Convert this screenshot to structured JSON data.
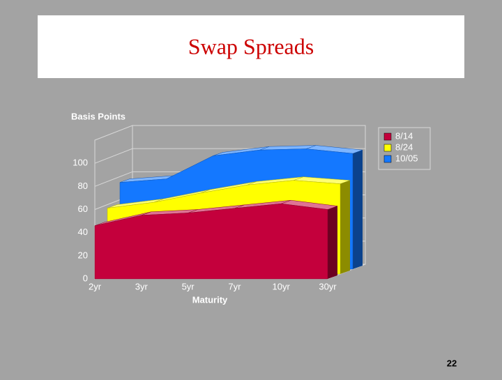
{
  "slide_title": "Swap Spreads",
  "page_number": "22",
  "chart_data": {
    "type": "area3d",
    "y_label": "Basis Points",
    "x_label": "Maturity",
    "categories": [
      "2yr",
      "3yr",
      "5yr",
      "7yr",
      "10yr",
      "30yr"
    ],
    "series": [
      {
        "name": "8/14",
        "color": "#c4003c",
        "values": [
          46,
          55,
          57,
          61,
          65,
          60
        ]
      },
      {
        "name": "8/24",
        "color": "#ffff00",
        "values": [
          57,
          62,
          70,
          77,
          81,
          78
        ]
      },
      {
        "name": "10/05",
        "color": "#1478ff",
        "values": [
          75,
          78,
          98,
          103,
          104,
          100
        ]
      }
    ],
    "ylim": [
      0,
      120
    ],
    "yticks": [
      0,
      20,
      40,
      60,
      80,
      100
    ],
    "grid": true,
    "legend": "right"
  }
}
